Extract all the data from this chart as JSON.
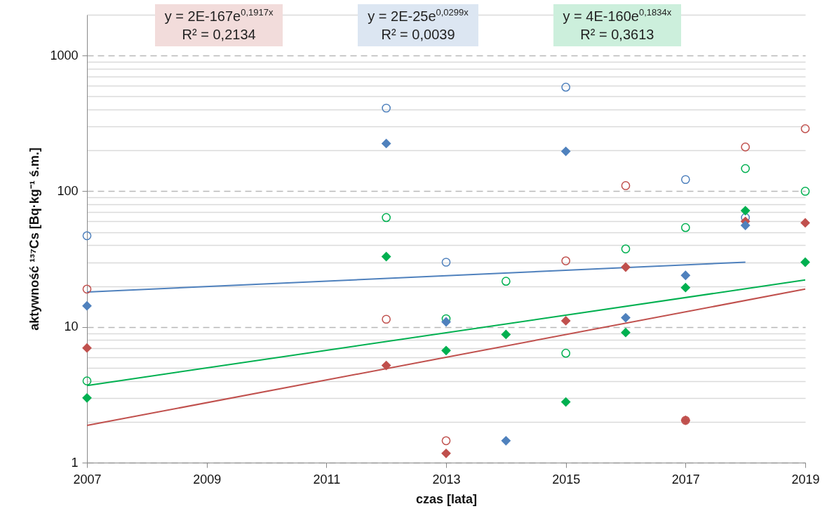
{
  "chart_data": {
    "type": "scatter",
    "xlabel": "czas [lata]",
    "ylabel": "aktywność ¹³⁷Cs [Bq·kg⁻¹ ś.m.]",
    "xlim": [
      2007,
      2019
    ],
    "xticks": [
      2007,
      2009,
      2011,
      2013,
      2015,
      2017,
      2019
    ],
    "ylim": [
      1,
      2000
    ],
    "log": true,
    "grid": "y",
    "yticks": [
      1,
      {
        "value": 2,
        "label": null
      },
      {
        "value": 3,
        "label": null
      },
      {
        "value": 4,
        "label": null
      },
      {
        "value": 5,
        "label": null
      },
      {
        "value": 6,
        "label": null
      },
      {
        "value": 7,
        "label": null
      },
      {
        "value": 8,
        "label": null
      },
      {
        "value": 9,
        "label": null
      },
      10,
      {
        "value": 20,
        "label": null
      },
      {
        "value": 30,
        "label": null
      },
      {
        "value": 40,
        "label": null
      },
      {
        "value": 50,
        "label": null
      },
      {
        "value": 60,
        "label": null
      },
      {
        "value": 70,
        "label": null
      },
      {
        "value": 80,
        "label": null
      },
      {
        "value": 90,
        "label": null
      },
      100,
      {
        "value": 200,
        "label": null
      },
      {
        "value": 300,
        "label": null
      },
      {
        "value": 400,
        "label": null
      },
      {
        "value": 500,
        "label": null
      },
      {
        "value": 600,
        "label": null
      },
      {
        "value": 700,
        "label": null
      },
      {
        "value": 800,
        "label": null
      },
      {
        "value": 900,
        "label": null
      },
      1000,
      {
        "value": 2000,
        "label": null
      }
    ],
    "annotations": [
      "y = 2E-167e$^{0,1917x}$\nR² = 0,2134",
      "y = 2E-25e$^{0,0299x}$\nR² = 0,0039",
      "y = 4E-160e$^{0,1834x}$\nR² = 0,3613"
    ],
    "line_style": "solid",
    "series": [
      {
        "marker": "circle",
        "color": "#4f81bd",
        "x": [
          2007,
          2012,
          2013,
          2015,
          2017,
          2018
        ],
        "values": [
          47,
          410,
          30,
          585,
          122,
          64
        ]
      },
      {
        "marker": "circle",
        "color": "#c0504d",
        "x": [
          2007,
          2012,
          2013,
          2015,
          2016,
          2017,
          2018,
          2019
        ],
        "values": [
          19,
          11.4,
          1.45,
          30.7,
          110,
          2.05,
          212,
          289
        ]
      },
      {
        "marker": "circle",
        "color": "#00b050",
        "x": [
          2007,
          2012,
          2013,
          2014,
          2015,
          2016,
          2017,
          2018,
          2019
        ],
        "values": [
          4.0,
          64,
          11.5,
          21.7,
          6.4,
          37.6,
          54,
          147,
          100
        ]
      },
      {
        "marker": "diamond",
        "color": "#c0504d",
        "x": [
          2007,
          2012,
          2013,
          2015,
          2016,
          2017,
          2018,
          2019
        ],
        "values": [
          7.0,
          5.2,
          1.17,
          11.1,
          27.6,
          2.05,
          60,
          58.5
        ]
      },
      {
        "marker": "diamond",
        "color": "#4f81bd",
        "x": [
          2007,
          2012,
          2013,
          2014,
          2015,
          2016,
          2017,
          2018
        ],
        "values": [
          14.3,
          225,
          10.9,
          1.45,
          197,
          11.7,
          24,
          56
        ]
      },
      {
        "marker": "diamond",
        "color": "#00b050",
        "x": [
          2007,
          2012,
          2013,
          2014,
          2015,
          2016,
          2017,
          2018,
          2019
        ],
        "values": [
          3.0,
          33,
          6.7,
          8.8,
          2.8,
          9.1,
          19.5,
          72,
          30
        ]
      },
      {
        "type": "line",
        "color": "#c0504d",
        "x": [
          2007,
          2019
        ],
        "values": [
          1.88,
          19
        ]
      },
      {
        "type": "line",
        "color": "#4f81bd",
        "x": [
          2007,
          2018
        ],
        "values": [
          18.1,
          30
        ]
      },
      {
        "type": "line",
        "color": "#00b050",
        "x": [
          2007,
          2019
        ],
        "values": [
          3.7,
          22.2
        ]
      }
    ]
  }
}
